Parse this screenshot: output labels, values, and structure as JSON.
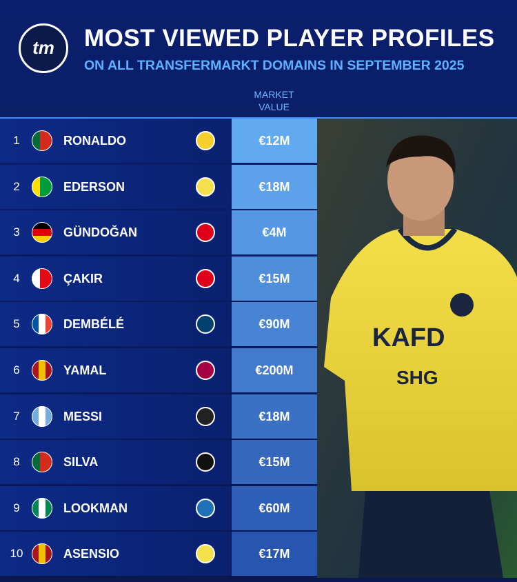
{
  "header": {
    "logo": "tm",
    "title": "MOST VIEWED PLAYER PROFILES",
    "subtitle": "ON ALL TRANSFERMARKT DOMAINS IN SEPTEMBER 2025",
    "column": "MARKET VALUE"
  },
  "table": {
    "rows": [
      [
        1,
        "RONALDO",
        "€12M"
      ],
      [
        2,
        "EDERSON",
        "€18M"
      ],
      [
        3,
        "GÜNDOĞAN",
        "€4M"
      ],
      [
        4,
        "ÇAKIR",
        "€15M"
      ],
      [
        5,
        "DEMBÉLÉ",
        "€90M"
      ],
      [
        6,
        "YAMAL",
        "€200M"
      ],
      [
        7,
        "MESSI",
        "€18M"
      ],
      [
        8,
        "SILVA",
        "€15M"
      ],
      [
        9,
        "LOOKMAN",
        "€60M"
      ],
      [
        10,
        "ASENSIO",
        "€17M"
      ]
    ]
  }
}
